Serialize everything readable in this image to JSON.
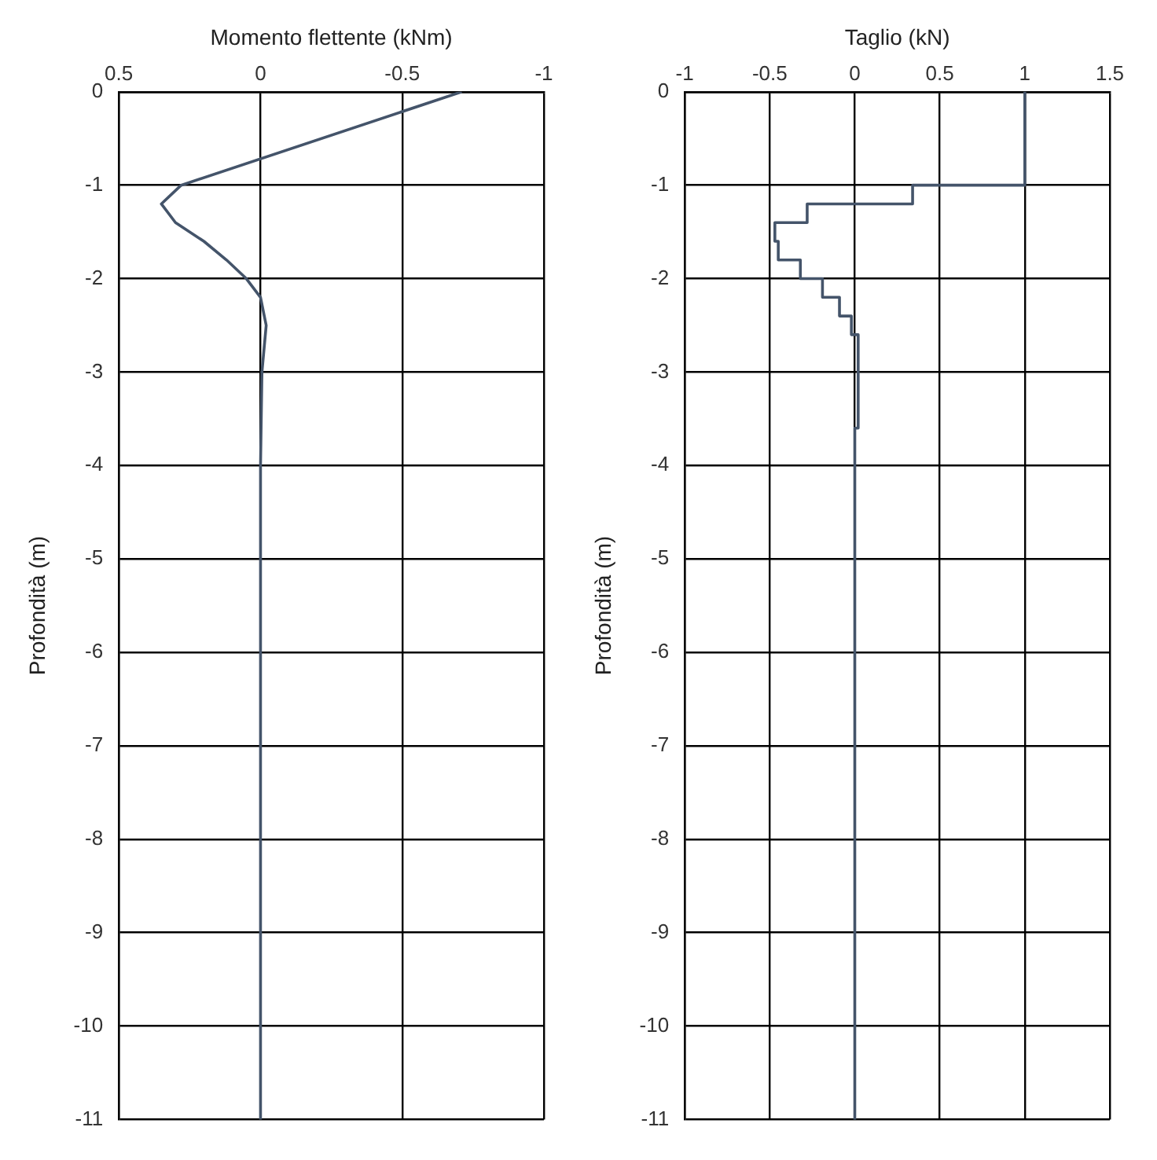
{
  "chart_data": [
    {
      "type": "line",
      "xlabel": "Momento flettente (kNm)",
      "ylabel": "Profondità (m)",
      "xlim": [
        0.5,
        -1
      ],
      "xticks": [
        0.5,
        0,
        -0.5,
        -1
      ],
      "ylim": [
        -11,
        0
      ],
      "yticks": [
        0,
        -1,
        -2,
        -3,
        -4,
        -5,
        -6,
        -7,
        -8,
        -9,
        -10,
        -11
      ],
      "grid": true,
      "legend": false,
      "marker": "none",
      "line_style": "solid",
      "series": [
        {
          "color": "#44546a",
          "x": [
            -0.71,
            0.28,
            0.35,
            0.3,
            0.2,
            0.12,
            0.05,
            0,
            -0.02,
            -0.005,
            0,
            0
          ],
          "values": [
            0,
            -1,
            -1.2,
            -1.4,
            -1.6,
            -1.8,
            -2,
            -2.2,
            -2.5,
            -3,
            -4,
            -11
          ]
        }
      ]
    },
    {
      "type": "line",
      "xlabel": "Taglio (kN)",
      "ylabel": "Profondità (m)",
      "xlim": [
        -1,
        1.5
      ],
      "xticks": [
        -1,
        -0.5,
        0,
        0.5,
        1,
        1.5
      ],
      "ylim": [
        -11,
        0
      ],
      "yticks": [
        0,
        -1,
        -2,
        -3,
        -4,
        -5,
        -6,
        -7,
        -8,
        -9,
        -10,
        -11
      ],
      "grid": true,
      "legend": false,
      "marker": "none",
      "line_style": "solid",
      "series": [
        {
          "color": "#44546a",
          "x": [
            1,
            1,
            0.34,
            0.34,
            -0.28,
            -0.28,
            -0.47,
            -0.47,
            -0.45,
            -0.45,
            -0.32,
            -0.32,
            -0.19,
            -0.19,
            -0.09,
            -0.09,
            -0.02,
            -0.02,
            0.02,
            0.02,
            0,
            0
          ],
          "values": [
            0,
            -1,
            -1,
            -1.2,
            -1.2,
            -1.4,
            -1.4,
            -1.6,
            -1.6,
            -1.8,
            -1.8,
            -2,
            -2,
            -2.2,
            -2.2,
            -2.4,
            -2.4,
            -2.6,
            -2.6,
            -3.6,
            -3.6,
            -11
          ]
        }
      ]
    }
  ]
}
